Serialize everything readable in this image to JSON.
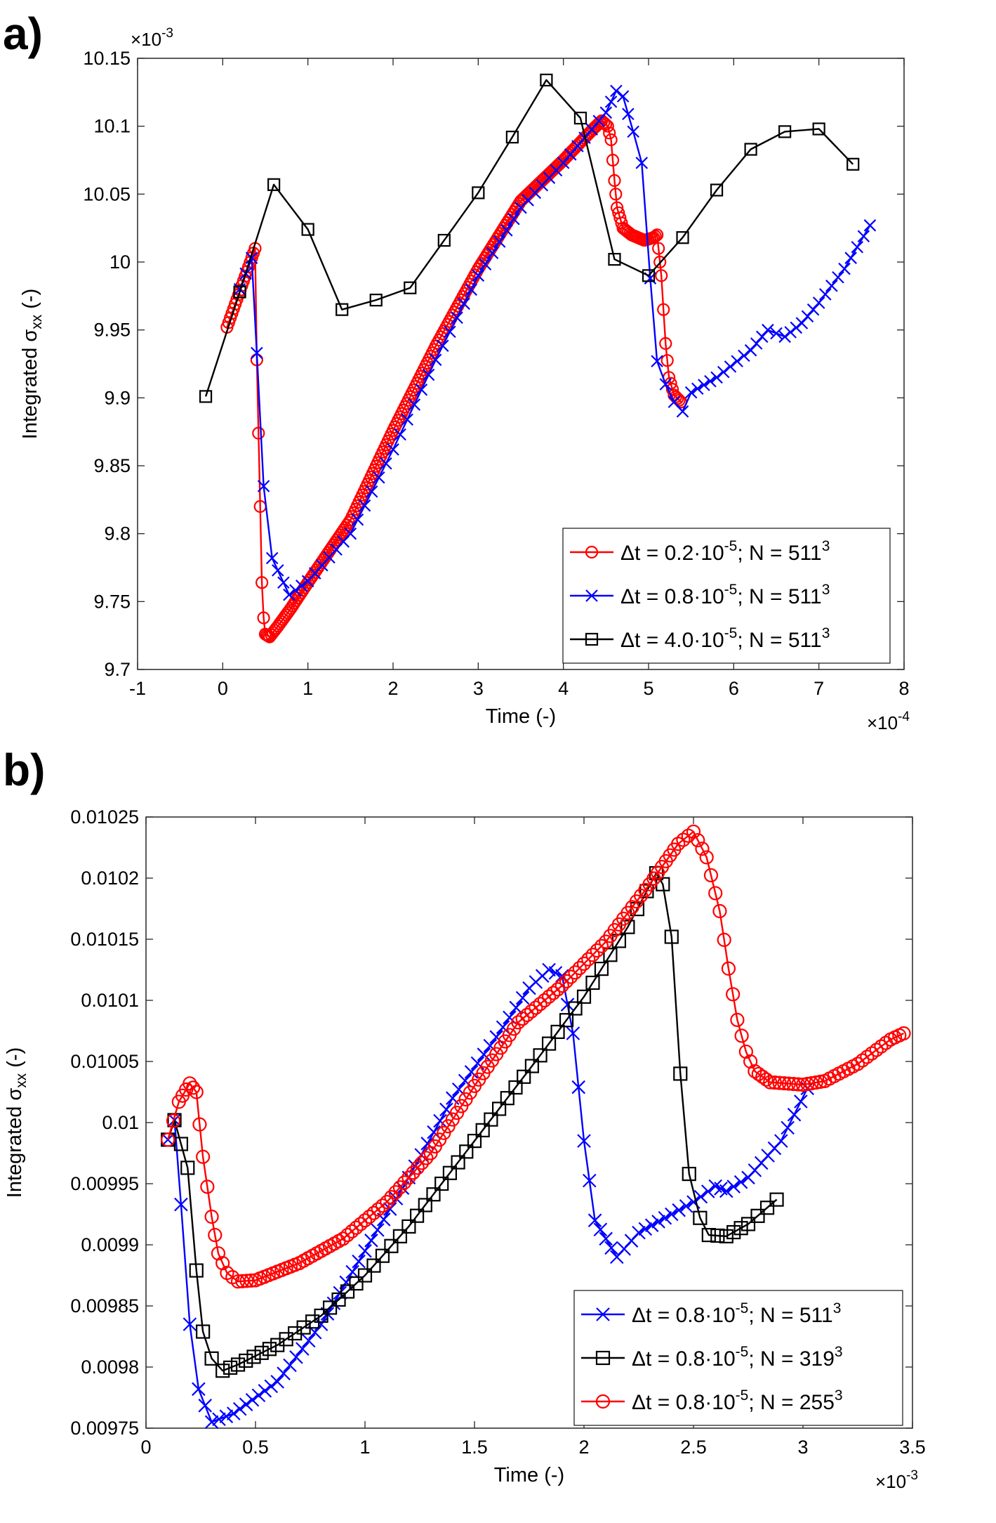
{
  "panels": {
    "a": {
      "letter": "a)"
    },
    "b": {
      "letter": "b)"
    }
  },
  "chart_data": [
    {
      "type": "line",
      "panel": "a)",
      "xlabel": "Time (-)",
      "ylabel": "Integrated σ",
      "ylabel_subscript": "xx",
      "ylabel_suffix": " (-)",
      "x_exponent": "×10",
      "x_exponent_power": "-4",
      "y_exponent": "×10",
      "y_exponent_power": "-3",
      "xlim": [
        -1,
        8
      ],
      "ylim": [
        9.7,
        10.15
      ],
      "xticks": [
        -1,
        0,
        1,
        2,
        3,
        4,
        5,
        6,
        7,
        8
      ],
      "xtick_labels": [
        "-1",
        "0",
        "1",
        "2",
        "3",
        "4",
        "5",
        "6",
        "7",
        "8"
      ],
      "yticks": [
        9.7,
        9.75,
        9.8,
        9.85,
        9.9,
        9.95,
        10,
        10.05,
        10.1,
        10.15
      ],
      "ytick_labels": [
        "9.7",
        "9.75",
        "9.8",
        "9.85",
        "9.9",
        "9.95",
        "10",
        "10.05",
        "10.1",
        "10.15"
      ],
      "legend_position": "bottom-right",
      "series": [
        {
          "name": "Δt = 0.2·10",
          "name_exp": "-5",
          "name_mid": "; N = 511",
          "name_end": "3",
          "color": "#ff0000",
          "marker": "circle",
          "keyframes": [
            [
              0.05,
              9.952
            ],
            [
              0.38,
              10.01
            ],
            [
              0.4,
              9.928
            ],
            [
              0.44,
              9.82
            ],
            [
              0.46,
              9.764
            ],
            [
              0.48,
              9.738
            ],
            [
              0.5,
              9.726
            ],
            [
              0.55,
              9.724
            ],
            [
              0.65,
              9.732
            ],
            [
              0.8,
              9.745
            ],
            [
              1.0,
              9.764
            ],
            [
              1.5,
              9.81
            ],
            [
              2.0,
              9.876
            ],
            [
              2.5,
              9.938
            ],
            [
              3.0,
              9.995
            ],
            [
              3.5,
              10.045
            ],
            [
              4.0,
              10.075
            ],
            [
              4.35,
              10.098
            ],
            [
              4.45,
              10.104
            ],
            [
              4.52,
              10.1
            ],
            [
              4.56,
              10.09
            ],
            [
              4.6,
              10.06
            ],
            [
              4.63,
              10.04
            ],
            [
              4.7,
              10.025
            ],
            [
              4.8,
              10.02
            ],
            [
              4.95,
              10.016
            ],
            [
              5.06,
              10.018
            ],
            [
              5.1,
              10.02
            ],
            [
              5.15,
              9.99
            ],
            [
              5.2,
              9.94
            ],
            [
              5.24,
              9.915
            ],
            [
              5.3,
              9.902
            ],
            [
              5.38,
              9.897
            ]
          ],
          "marker_step": 0.02
        },
        {
          "name": "Δt = 0.8·10",
          "name_exp": "-5",
          "name_mid": "; N = 511",
          "name_end": "3",
          "color": "#0000ff",
          "marker": "x",
          "keyframes": [
            [
              0.2,
              9.98
            ],
            [
              0.34,
              10.003
            ],
            [
              0.4,
              9.933
            ],
            [
              0.48,
              9.835
            ],
            [
              0.58,
              9.782
            ],
            [
              0.78,
              9.755
            ],
            [
              1.0,
              9.765
            ],
            [
              1.5,
              9.8
            ],
            [
              2.0,
              9.862
            ],
            [
              2.5,
              9.928
            ],
            [
              3.0,
              9.99
            ],
            [
              3.5,
              10.04
            ],
            [
              4.0,
              10.073
            ],
            [
              4.5,
              10.11
            ],
            [
              4.62,
              10.126
            ],
            [
              4.7,
              10.122
            ],
            [
              4.82,
              10.096
            ],
            [
              4.92,
              10.073
            ],
            [
              5.02,
              9.988
            ],
            [
              5.1,
              9.927
            ],
            [
              5.2,
              9.91
            ],
            [
              5.3,
              9.897
            ],
            [
              5.4,
              9.89
            ],
            [
              5.5,
              9.904
            ],
            [
              5.8,
              9.915
            ],
            [
              6.2,
              9.935
            ],
            [
              6.4,
              9.95
            ],
            [
              6.6,
              9.945
            ],
            [
              6.8,
              9.955
            ],
            [
              7.0,
              9.97
            ],
            [
              7.3,
              9.995
            ],
            [
              7.6,
              10.027
            ]
          ],
          "marker_step": 0.08
        },
        {
          "name": "Δt = 4.0·10",
          "name_exp": "-5",
          "name_mid": "; N = 511",
          "name_end": "3",
          "color": "#000000",
          "marker": "square",
          "points": [
            [
              -0.2,
              9.901
            ],
            [
              0.2,
              9.978
            ],
            [
              0.6,
              10.057
            ],
            [
              1.0,
              10.024
            ],
            [
              1.4,
              9.965
            ],
            [
              1.8,
              9.972
            ],
            [
              2.2,
              9.981
            ],
            [
              2.6,
              10.016
            ],
            [
              3.0,
              10.051
            ],
            [
              3.4,
              10.092
            ],
            [
              3.8,
              10.134
            ],
            [
              4.2,
              10.106
            ],
            [
              4.6,
              10.002
            ],
            [
              5.0,
              9.99
            ],
            [
              5.4,
              10.018
            ],
            [
              5.8,
              10.053
            ],
            [
              6.2,
              10.083
            ],
            [
              6.6,
              10.096
            ],
            [
              7.0,
              10.098
            ],
            [
              7.4,
              10.072
            ]
          ]
        }
      ]
    },
    {
      "type": "line",
      "panel": "b)",
      "xlabel": "Time (-)",
      "ylabel": "Integrated σ",
      "ylabel_subscript": "xx",
      "ylabel_suffix": " (-)",
      "x_exponent": "×10",
      "x_exponent_power": "-3",
      "xlim": [
        0,
        3.5
      ],
      "ylim": [
        0.00975,
        0.01025
      ],
      "xticks": [
        0,
        0.5,
        1,
        1.5,
        2,
        2.5,
        3,
        3.5
      ],
      "xtick_labels": [
        "0",
        "0.5",
        "1",
        "1.5",
        "2",
        "2.5",
        "3",
        "3.5"
      ],
      "yticks": [
        0.00975,
        0.0098,
        0.00985,
        0.0099,
        0.00995,
        0.01,
        0.01005,
        0.0101,
        0.01015,
        0.0102,
        0.01025
      ],
      "ytick_labels": [
        "0.00975",
        "0.0098",
        "0.00985",
        "0.0099",
        "0.00995",
        "0.01",
        "0.01005",
        "0.0101",
        "0.01015",
        "0.0102",
        "0.01025"
      ],
      "legend_position": "bottom-right",
      "series": [
        {
          "name": "Δt = 0.8·10",
          "name_exp": "-5",
          "name_mid": "; N = 511",
          "name_end": "3",
          "color": "#0000ff",
          "marker": "x",
          "keyframes": [
            [
              0.1,
              0.009986
            ],
            [
              0.13,
              0.010002
            ],
            [
              0.16,
              0.009933
            ],
            [
              0.2,
              0.009835
            ],
            [
              0.24,
              0.009782
            ],
            [
              0.3,
              0.009755
            ],
            [
              0.4,
              0.009762
            ],
            [
              0.6,
              0.009788
            ],
            [
              0.8,
              0.009835
            ],
            [
              1.0,
              0.009895
            ],
            [
              1.2,
              0.009955
            ],
            [
              1.4,
              0.01002
            ],
            [
              1.6,
              0.01007
            ],
            [
              1.75,
              0.01011
            ],
            [
              1.84,
              0.010125
            ],
            [
              1.9,
              0.01012
            ],
            [
              1.95,
              0.010073
            ],
            [
              2.0,
              0.009985
            ],
            [
              2.05,
              0.00992
            ],
            [
              2.1,
              0.009905
            ],
            [
              2.15,
              0.00989
            ],
            [
              2.25,
              0.00991
            ],
            [
              2.4,
              0.009925
            ],
            [
              2.5,
              0.009935
            ],
            [
              2.6,
              0.009948
            ],
            [
              2.65,
              0.009944
            ],
            [
              2.75,
              0.009955
            ],
            [
              2.9,
              0.009985
            ],
            [
              3.02,
              0.010028
            ]
          ],
          "marker_step": 0.03
        },
        {
          "name": "Δt = 0.8·10",
          "name_exp": "-5",
          "name_mid": "; N = 319",
          "name_end": "3",
          "color": "#000000",
          "marker": "square",
          "keyframes": [
            [
              0.1,
              0.009986
            ],
            [
              0.13,
              0.010002
            ],
            [
              0.19,
              0.009963
            ],
            [
              0.23,
              0.009879
            ],
            [
              0.26,
              0.009829
            ],
            [
              0.3,
              0.009807
            ],
            [
              0.35,
              0.009797
            ],
            [
              0.42,
              0.009802
            ],
            [
              0.6,
              0.009818
            ],
            [
              0.8,
              0.009842
            ],
            [
              1.0,
              0.009875
            ],
            [
              1.2,
              0.009915
            ],
            [
              1.5,
              0.009985
            ],
            [
              1.8,
              0.010055
            ],
            [
              2.0,
              0.010103
            ],
            [
              2.2,
              0.01016
            ],
            [
              2.33,
              0.010204
            ],
            [
              2.36,
              0.010195
            ],
            [
              2.4,
              0.010152
            ],
            [
              2.44,
              0.01004
            ],
            [
              2.48,
              0.009958
            ],
            [
              2.53,
              0.009922
            ],
            [
              2.57,
              0.009908
            ],
            [
              2.65,
              0.009907
            ],
            [
              2.75,
              0.009917
            ],
            [
              2.88,
              0.009937
            ]
          ],
          "marker_step": 0.04
        },
        {
          "name": "Δt = 0.8·10",
          "name_exp": "-5",
          "name_mid": "; N = 255",
          "name_end": "3",
          "color": "#ff0000",
          "marker": "circle",
          "keyframes": [
            [
              0.1,
              0.009986
            ],
            [
              0.15,
              0.010017
            ],
            [
              0.2,
              0.010032
            ],
            [
              0.23,
              0.010025
            ],
            [
              0.26,
              0.009972
            ],
            [
              0.3,
              0.009923
            ],
            [
              0.33,
              0.009893
            ],
            [
              0.37,
              0.009877
            ],
            [
              0.42,
              0.00987
            ],
            [
              0.5,
              0.009871
            ],
            [
              0.7,
              0.009885
            ],
            [
              0.9,
              0.009905
            ],
            [
              1.1,
              0.009935
            ],
            [
              1.3,
              0.009975
            ],
            [
              1.5,
              0.01003
            ],
            [
              1.7,
              0.010082
            ],
            [
              1.9,
              0.010112
            ],
            [
              2.1,
              0.010148
            ],
            [
              2.3,
              0.010195
            ],
            [
              2.43,
              0.010228
            ],
            [
              2.5,
              0.010238
            ],
            [
              2.56,
              0.010217
            ],
            [
              2.62,
              0.010173
            ],
            [
              2.66,
              0.010126
            ],
            [
              2.7,
              0.010084
            ],
            [
              2.74,
              0.010058
            ],
            [
              2.78,
              0.010042
            ],
            [
              2.85,
              0.010033
            ],
            [
              3.0,
              0.010031
            ],
            [
              3.1,
              0.010034
            ],
            [
              3.25,
              0.010048
            ],
            [
              3.4,
              0.010068
            ],
            [
              3.46,
              0.010073
            ]
          ],
          "marker_step": 0.02
        }
      ]
    }
  ]
}
